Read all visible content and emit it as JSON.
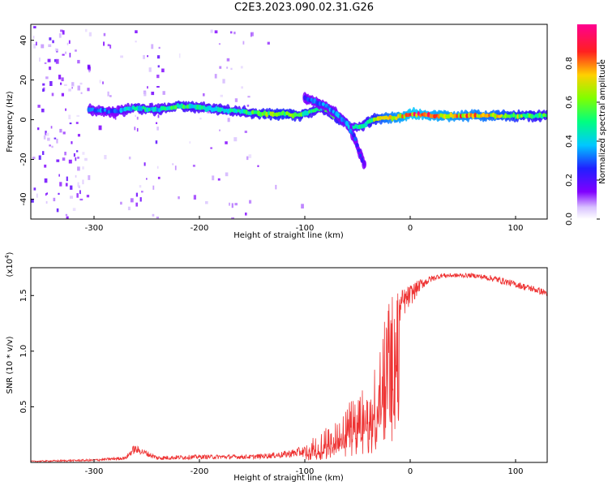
{
  "figure": {
    "title": "C2E3.2023.090.02.31.G26"
  },
  "chart_data": [
    {
      "type": "heatmap",
      "xlabel": "Height of straight line (km)",
      "ylabel": "Frequency (Hz)",
      "xlim": [
        -360,
        130
      ],
      "ylim": [
        -50,
        48
      ],
      "x_ticks": [
        -300,
        -200,
        -100,
        0,
        100
      ],
      "x_tick_labels": [
        "-300",
        "-200",
        "-100",
        "0",
        "100"
      ],
      "y_ticks": [
        -40,
        -20,
        0,
        20,
        40
      ],
      "y_tick_labels": [
        "-40",
        "-20",
        "0",
        "20",
        "40"
      ],
      "colorbar": {
        "label": "Normalized spectral amplitude",
        "range": [
          0,
          1
        ],
        "ticks": [
          0.0,
          0.2,
          0.4,
          0.6,
          0.8
        ],
        "tick_labels": [
          "0.0",
          "0.2",
          "0.4",
          "0.6",
          "0.8"
        ],
        "colormap": "rainbow (violet→blue→cyan→green→yellow→red→magenta)"
      },
      "series": [
        {
          "description": "main signal ridge (approx. frequency of peak vs height)",
          "x": [
            -305,
            -280,
            -260,
            -240,
            -220,
            -200,
            -180,
            -160,
            -140,
            -120,
            -105,
            -95,
            -85,
            -75,
            -65,
            -55,
            -45,
            -35,
            -25,
            -15,
            -5,
            0,
            20,
            50,
            80,
            110,
            130
          ],
          "y": [
            5,
            4,
            6,
            5,
            7,
            6,
            5,
            4,
            3,
            3,
            2,
            4,
            6,
            3,
            0,
            -4,
            -3,
            0,
            1,
            1,
            2,
            3,
            2,
            2,
            2,
            2,
            2
          ],
          "amplitude": [
            0.35,
            0.3,
            0.45,
            0.4,
            0.5,
            0.45,
            0.45,
            0.45,
            0.55,
            0.6,
            0.55,
            0.5,
            0.45,
            0.5,
            0.55,
            0.4,
            0.45,
            0.55,
            0.7,
            0.75,
            0.8,
            0.85,
            0.8,
            0.75,
            0.7,
            0.55,
            0.5
          ]
        },
        {
          "description": "descending branch",
          "x": [
            -100,
            -95,
            -90,
            -85,
            -80,
            -70,
            -60,
            -52,
            -47,
            -43
          ],
          "y": [
            11,
            10,
            9,
            8,
            7,
            3,
            -2,
            -10,
            -18,
            -23
          ],
          "amplitude": [
            0.25,
            0.3,
            0.3,
            0.35,
            0.3,
            0.35,
            0.35,
            0.3,
            0.25,
            0.2
          ]
        }
      ]
    },
    {
      "type": "line",
      "xlabel": "Height of straight line (km)",
      "ylabel": "SNR (10 * v/v)",
      "multiplier": "(x10",
      "multiplier_exp": "4",
      "multiplier_close": ")",
      "xlim": [
        -360,
        130
      ],
      "ylim": [
        0,
        1.75
      ],
      "x_ticks": [
        -300,
        -200,
        -100,
        0,
        100
      ],
      "x_tick_labels": [
        "-300",
        "-200",
        "-100",
        "0",
        "100"
      ],
      "y_ticks": [
        0.5,
        1.0,
        1.5
      ],
      "y_tick_labels": [
        "0.5",
        "1.0",
        "1.5"
      ],
      "color": "#ee3333",
      "series": [
        {
          "description": "SNR envelope (units of 10^4)",
          "x": [
            -360,
            -300,
            -270,
            -262,
            -255,
            -240,
            -200,
            -150,
            -120,
            -100,
            -90,
            -80,
            -70,
            -60,
            -50,
            -40,
            -30,
            -25,
            -20,
            -15,
            -10,
            -5,
            0,
            10,
            20,
            30,
            40,
            60,
            80,
            100,
            120,
            130
          ],
          "y": [
            0.01,
            0.02,
            0.04,
            0.12,
            0.1,
            0.04,
            0.05,
            0.05,
            0.07,
            0.1,
            0.15,
            0.2,
            0.25,
            0.32,
            0.38,
            0.45,
            0.6,
            0.9,
            1.2,
            1.3,
            1.4,
            1.45,
            1.5,
            1.6,
            1.65,
            1.68,
            1.68,
            1.68,
            1.65,
            1.6,
            1.55,
            1.52
          ],
          "noise": [
            0.005,
            0.01,
            0.015,
            0.04,
            0.03,
            0.02,
            0.02,
            0.02,
            0.03,
            0.05,
            0.1,
            0.15,
            0.17,
            0.2,
            0.25,
            0.3,
            0.35,
            0.45,
            0.3,
            0.2,
            0.15,
            0.12,
            0.1,
            0.05,
            0.03,
            0.02,
            0.02,
            0.02,
            0.03,
            0.03,
            0.03,
            0.03
          ]
        }
      ]
    }
  ]
}
